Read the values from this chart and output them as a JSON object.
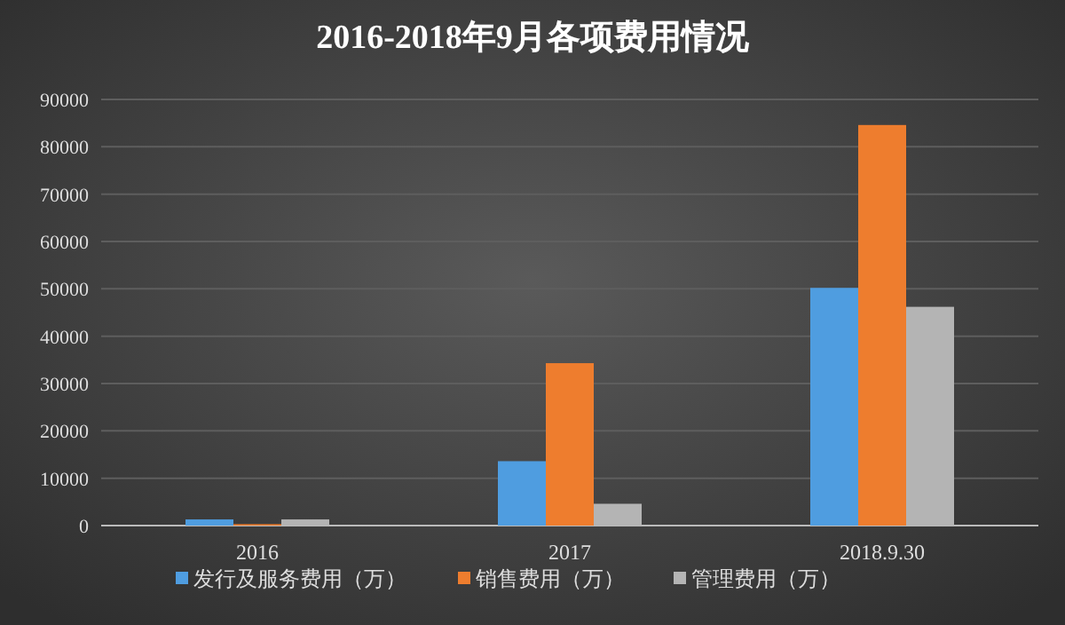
{
  "chart_data": {
    "type": "bar",
    "title": "2016-2018年9月各项费用情况",
    "categories": [
      "2016",
      "2017",
      "2018.9.30"
    ],
    "series": [
      {
        "name": "发行及服务费用（万）",
        "color": "#4f9de0",
        "values": [
          1300,
          13600,
          50200
        ]
      },
      {
        "name": "销售费用（万）",
        "color": "#ee7d2e",
        "values": [
          300,
          34300,
          84600
        ]
      },
      {
        "name": "管理费用（万）",
        "color": "#b4b4b4",
        "values": [
          1300,
          4600,
          46200
        ]
      }
    ],
    "ylim": [
      0,
      90000
    ],
    "yticks": [
      0,
      10000,
      20000,
      30000,
      40000,
      50000,
      60000,
      70000,
      80000,
      90000
    ],
    "grid": "y",
    "legend": "bottom"
  }
}
